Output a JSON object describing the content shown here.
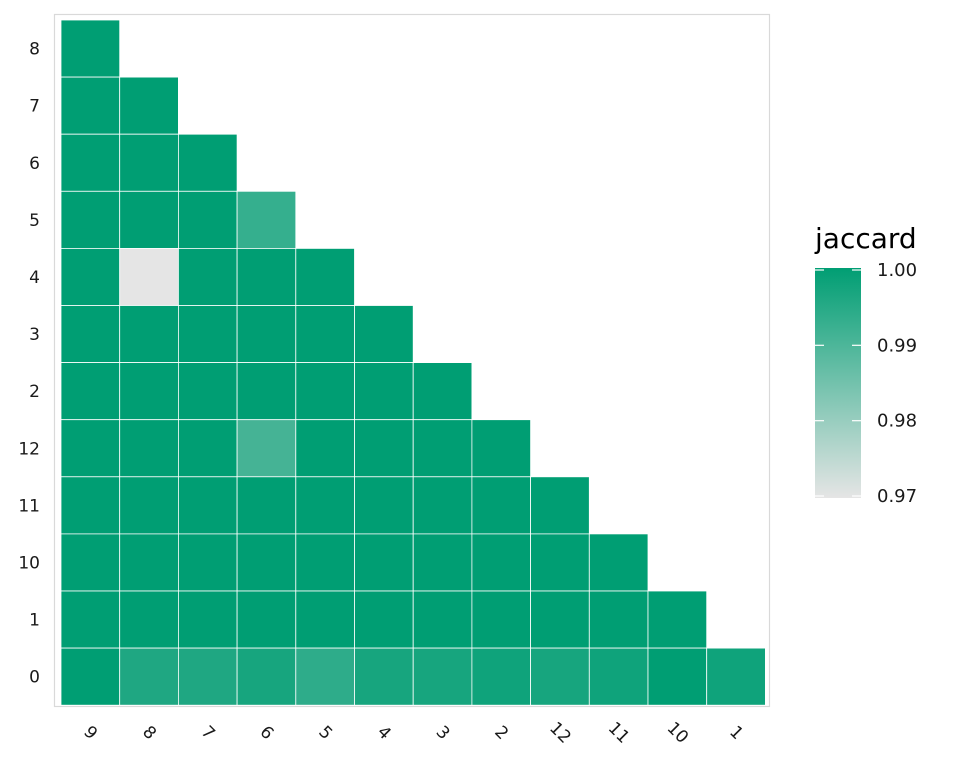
{
  "chart_data": {
    "type": "heatmap",
    "title": "",
    "xlabel": "",
    "ylabel": "",
    "x_categories": [
      "9",
      "8",
      "7",
      "6",
      "5",
      "4",
      "3",
      "2",
      "12",
      "11",
      "10",
      "1"
    ],
    "y_categories": [
      "0",
      "1",
      "10",
      "11",
      "12",
      "2",
      "3",
      "4",
      "5",
      "6",
      "7",
      "8"
    ],
    "cells": [
      {
        "x": "9",
        "y": "8",
        "value": 1.0
      },
      {
        "x": "9",
        "y": "7",
        "value": 1.0
      },
      {
        "x": "8",
        "y": "7",
        "value": 1.0
      },
      {
        "x": "9",
        "y": "6",
        "value": 1.0
      },
      {
        "x": "8",
        "y": "6",
        "value": 1.0
      },
      {
        "x": "7",
        "y": "6",
        "value": 1.0
      },
      {
        "x": "9",
        "y": "5",
        "value": 1.0
      },
      {
        "x": "8",
        "y": "5",
        "value": 1.0
      },
      {
        "x": "7",
        "y": "5",
        "value": 1.0
      },
      {
        "x": "6",
        "y": "5",
        "value": 0.993
      },
      {
        "x": "9",
        "y": "4",
        "value": 1.0
      },
      {
        "x": "8",
        "y": "4",
        "value": 0.97
      },
      {
        "x": "7",
        "y": "4",
        "value": 1.0
      },
      {
        "x": "6",
        "y": "4",
        "value": 1.0
      },
      {
        "x": "5",
        "y": "4",
        "value": 1.0
      },
      {
        "x": "9",
        "y": "3",
        "value": 1.0
      },
      {
        "x": "8",
        "y": "3",
        "value": 1.0
      },
      {
        "x": "7",
        "y": "3",
        "value": 1.0
      },
      {
        "x": "6",
        "y": "3",
        "value": 1.0
      },
      {
        "x": "5",
        "y": "3",
        "value": 1.0
      },
      {
        "x": "4",
        "y": "3",
        "value": 1.0
      },
      {
        "x": "9",
        "y": "2",
        "value": 1.0
      },
      {
        "x": "8",
        "y": "2",
        "value": 1.0
      },
      {
        "x": "7",
        "y": "2",
        "value": 1.0
      },
      {
        "x": "6",
        "y": "2",
        "value": 1.0
      },
      {
        "x": "5",
        "y": "2",
        "value": 1.0
      },
      {
        "x": "4",
        "y": "2",
        "value": 1.0
      },
      {
        "x": "3",
        "y": "2",
        "value": 1.0
      },
      {
        "x": "9",
        "y": "12",
        "value": 1.0
      },
      {
        "x": "8",
        "y": "12",
        "value": 1.0
      },
      {
        "x": "7",
        "y": "12",
        "value": 1.0
      },
      {
        "x": "6",
        "y": "12",
        "value": 0.991
      },
      {
        "x": "5",
        "y": "12",
        "value": 1.0
      },
      {
        "x": "4",
        "y": "12",
        "value": 1.0
      },
      {
        "x": "3",
        "y": "12",
        "value": 1.0
      },
      {
        "x": "2",
        "y": "12",
        "value": 1.0
      },
      {
        "x": "9",
        "y": "11",
        "value": 1.0
      },
      {
        "x": "8",
        "y": "11",
        "value": 1.0
      },
      {
        "x": "7",
        "y": "11",
        "value": 1.0
      },
      {
        "x": "6",
        "y": "11",
        "value": 1.0
      },
      {
        "x": "5",
        "y": "11",
        "value": 1.0
      },
      {
        "x": "4",
        "y": "11",
        "value": 1.0
      },
      {
        "x": "3",
        "y": "11",
        "value": 1.0
      },
      {
        "x": "2",
        "y": "11",
        "value": 1.0
      },
      {
        "x": "12",
        "y": "11",
        "value": 1.0
      },
      {
        "x": "9",
        "y": "10",
        "value": 1.0
      },
      {
        "x": "8",
        "y": "10",
        "value": 1.0
      },
      {
        "x": "7",
        "y": "10",
        "value": 1.0
      },
      {
        "x": "6",
        "y": "10",
        "value": 1.0
      },
      {
        "x": "5",
        "y": "10",
        "value": 1.0
      },
      {
        "x": "4",
        "y": "10",
        "value": 1.0
      },
      {
        "x": "3",
        "y": "10",
        "value": 1.0
      },
      {
        "x": "2",
        "y": "10",
        "value": 1.0
      },
      {
        "x": "12",
        "y": "10",
        "value": 1.0
      },
      {
        "x": "11",
        "y": "10",
        "value": 1.0
      },
      {
        "x": "9",
        "y": "1",
        "value": 1.0
      },
      {
        "x": "8",
        "y": "1",
        "value": 1.0
      },
      {
        "x": "7",
        "y": "1",
        "value": 1.0
      },
      {
        "x": "6",
        "y": "1",
        "value": 1.0
      },
      {
        "x": "5",
        "y": "1",
        "value": 1.0
      },
      {
        "x": "4",
        "y": "1",
        "value": 1.0
      },
      {
        "x": "3",
        "y": "1",
        "value": 1.0
      },
      {
        "x": "2",
        "y": "1",
        "value": 1.0
      },
      {
        "x": "12",
        "y": "1",
        "value": 1.0
      },
      {
        "x": "11",
        "y": "1",
        "value": 1.0
      },
      {
        "x": "10",
        "y": "1",
        "value": 1.0
      },
      {
        "x": "9",
        "y": "0",
        "value": 1.0
      },
      {
        "x": "8",
        "y": "0",
        "value": 0.996
      },
      {
        "x": "7",
        "y": "0",
        "value": 0.996
      },
      {
        "x": "6",
        "y": "0",
        "value": 0.997
      },
      {
        "x": "5",
        "y": "0",
        "value": 0.994
      },
      {
        "x": "4",
        "y": "0",
        "value": 0.997
      },
      {
        "x": "3",
        "y": "0",
        "value": 0.997
      },
      {
        "x": "2",
        "y": "0",
        "value": 0.998
      },
      {
        "x": "12",
        "y": "0",
        "value": 0.997
      },
      {
        "x": "11",
        "y": "0",
        "value": 0.998
      },
      {
        "x": "10",
        "y": "0",
        "value": 1.0
      },
      {
        "x": "1",
        "y": "0",
        "value": 0.998
      }
    ],
    "legend": {
      "title": "jaccard",
      "min": 0.97,
      "max": 1.0,
      "breaks": [
        1.0,
        0.99,
        0.98,
        0.97
      ],
      "break_labels": [
        "1.00",
        "0.99",
        "0.98",
        "0.97"
      ],
      "color_low": "#e5e5e5",
      "color_high": "#009e73",
      "placement": "right"
    },
    "colors": {
      "panel_border": "#d9d9d9",
      "cell_border": "#ffffff"
    }
  }
}
